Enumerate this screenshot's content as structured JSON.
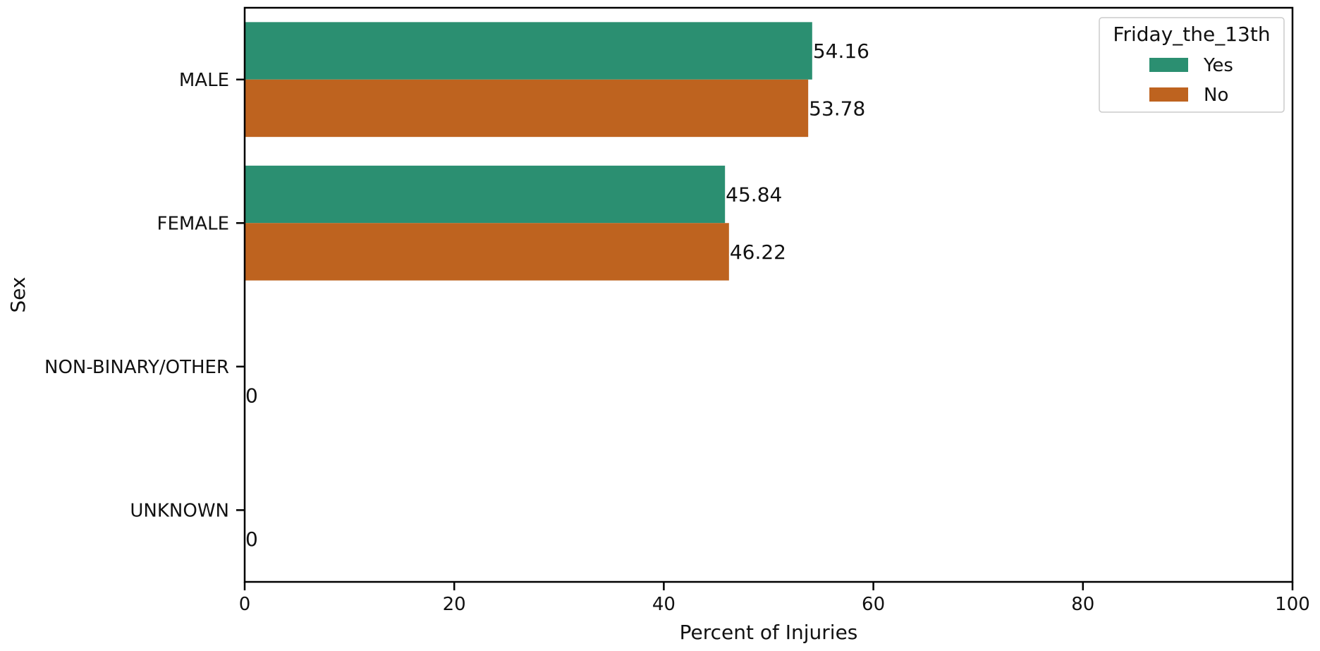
{
  "chart_data": {
    "type": "bar",
    "orientation": "horizontal",
    "categories": [
      "MALE",
      "FEMALE",
      "NON-BINARY/OTHER",
      "UNKNOWN"
    ],
    "series": [
      {
        "name": "Yes",
        "values": [
          54.16,
          45.84,
          0,
          0
        ],
        "labels": [
          "54.16",
          "45.84",
          "",
          ""
        ],
        "color": "#2b8f71"
      },
      {
        "name": "No",
        "values": [
          53.78,
          46.22,
          0,
          0
        ],
        "labels": [
          "53.78",
          "46.22",
          "0",
          "0"
        ],
        "color": "#be631f"
      }
    ],
    "xlabel": "Percent of Injuries",
    "ylabel": "Sex",
    "xlim": [
      0,
      100
    ],
    "xticks": [
      0,
      20,
      40,
      60,
      80,
      100
    ],
    "xtick_labels": [
      "0",
      "20",
      "40",
      "60",
      "80",
      "100"
    ],
    "grid": false,
    "legend": {
      "title": "Friday_the_13th",
      "placement": "upper-right"
    }
  }
}
